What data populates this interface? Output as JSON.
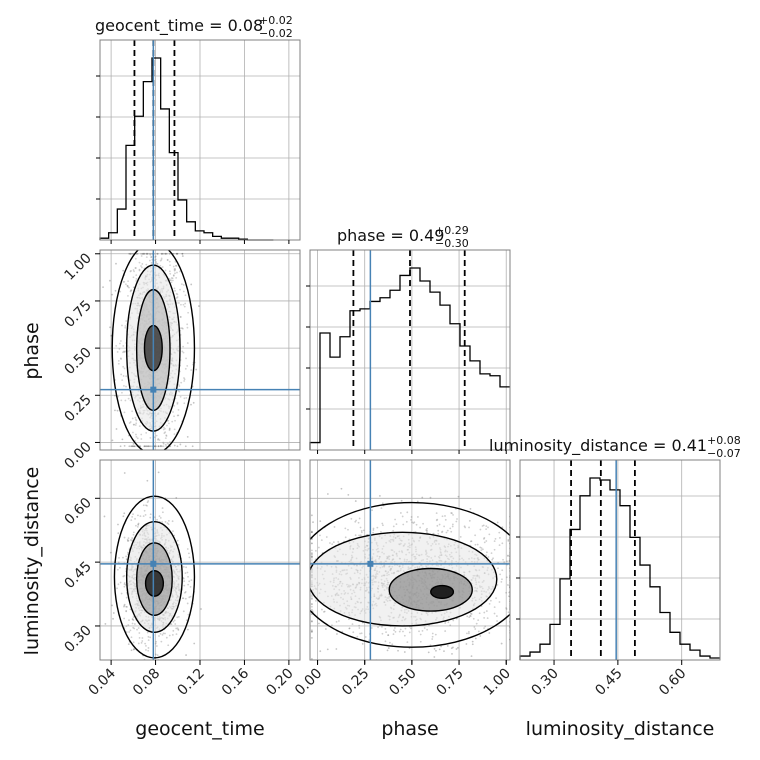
{
  "chart_data": {
    "type": "corner",
    "parameters": [
      "geocent_time",
      "phase",
      "luminosity_distance"
    ],
    "truths": {
      "geocent_time": 0.078,
      "phase": 0.28,
      "luminosity_distance": 0.446
    },
    "titles": [
      {
        "parameter": "geocent_time",
        "label": "geocent_time = 0.08",
        "plus": "+0.02",
        "minus": "−0.02"
      },
      {
        "parameter": "phase",
        "label": "phase = 0.49",
        "plus": "+0.29",
        "minus": "−0.30"
      },
      {
        "parameter": "luminosity_distance",
        "label": "luminosity_distance = 0.41",
        "plus": "+0.08",
        "minus": "−0.07"
      }
    ],
    "axis_labels": {
      "bottom": [
        "geocent_time",
        "phase",
        "luminosity_distance"
      ],
      "left": [
        "phase",
        "luminosity_distance"
      ]
    },
    "ranges": {
      "geocent_time": [
        0.03,
        0.21
      ],
      "phase": [
        -0.04,
        1.02
      ],
      "luminosity_distance": [
        0.22,
        0.69
      ]
    },
    "ticks": {
      "geocent_time": [
        "0.04",
        "0.08",
        "0.12",
        "0.16",
        "0.20"
      ],
      "phase": [
        "0.00",
        "0.25",
        "0.50",
        "0.75",
        "1.00"
      ],
      "luminosity_distance_left": [
        "0.30",
        "0.45",
        "0.60"
      ],
      "luminosity_distance_bottom": [
        "0.30",
        "0.45",
        "0.60"
      ]
    },
    "histograms": {
      "geocent_time": {
        "edges": [
          0.03,
          0.0378,
          0.0456,
          0.0534,
          0.0612,
          0.069,
          0.0768,
          0.0846,
          0.0924,
          0.1002,
          0.108,
          0.1158,
          0.1236,
          0.1314,
          0.1392,
          0.147,
          0.1548,
          0.1626,
          0.1704,
          0.1782,
          0.186
        ],
        "counts": [
          0.01,
          0.04,
          0.17,
          0.52,
          0.68,
          0.87,
          1.0,
          0.72,
          0.48,
          0.22,
          0.1,
          0.05,
          0.04,
          0.02,
          0.01,
          0.01,
          0.005,
          0,
          0,
          0
        ],
        "quantiles": [
          0.061,
          0.078,
          0.097
        ]
      },
      "phase": {
        "edges": [
          -0.04,
          0.013,
          0.066,
          0.119,
          0.172,
          0.225,
          0.278,
          0.331,
          0.384,
          0.437,
          0.49,
          0.543,
          0.596,
          0.649,
          0.702,
          0.755,
          0.808,
          0.861,
          0.914,
          0.967,
          1.02
        ],
        "counts": [
          0.04,
          0.63,
          0.5,
          0.61,
          0.75,
          0.76,
          0.8,
          0.82,
          0.86,
          0.94,
          0.98,
          0.91,
          0.85,
          0.78,
          0.68,
          0.56,
          0.48,
          0.41,
          0.4,
          0.34
        ],
        "quantiles": [
          0.19,
          0.49,
          0.78
        ]
      },
      "luminosity_distance": {
        "edges": [
          0.22,
          0.2435,
          0.267,
          0.2905,
          0.314,
          0.3375,
          0.361,
          0.3845,
          0.408,
          0.4315,
          0.455,
          0.4785,
          0.502,
          0.5255,
          0.549,
          0.5725,
          0.596,
          0.6195,
          0.643,
          0.6665,
          0.69
        ],
        "counts": [
          0.02,
          0.04,
          0.08,
          0.18,
          0.41,
          0.66,
          0.83,
          0.92,
          0.91,
          0.86,
          0.78,
          0.62,
          0.48,
          0.37,
          0.24,
          0.14,
          0.08,
          0.05,
          0.02,
          0.01
        ],
        "quantiles": [
          0.34,
          0.41,
          0.49
        ]
      }
    },
    "colors": {
      "truth": "#4682b4",
      "hist": "#000000",
      "quantile": "#000000",
      "grid": "#b0b0b0"
    },
    "grid": true
  }
}
